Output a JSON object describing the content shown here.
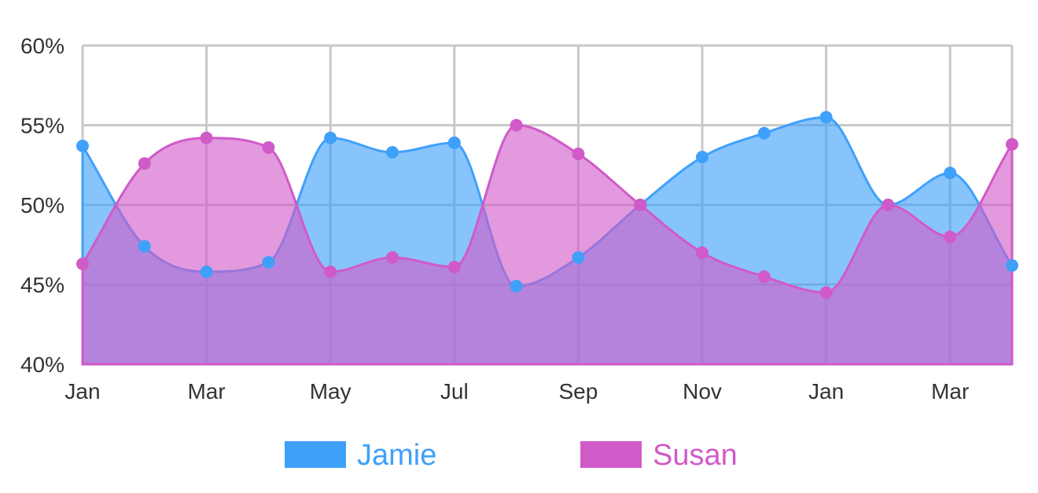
{
  "chart_data": {
    "type": "area",
    "title": "",
    "xlabel": "",
    "ylabel": "",
    "x_tick_labels": [
      "Jan",
      "Mar",
      "May",
      "Jul",
      "Sep",
      "Nov",
      "Jan",
      "Mar"
    ],
    "y_tick_labels": [
      "40%",
      "45%",
      "50%",
      "55%",
      "60%"
    ],
    "ylim": [
      40,
      60
    ],
    "grid": true,
    "legend_position": "bottom",
    "series": [
      {
        "name": "Jamie",
        "color": "#3fa0fa",
        "fill": "rgba(63,160,250,0.62)",
        "values": [
          53.7,
          47.4,
          45.8,
          46.4,
          54.2,
          53.3,
          53.9,
          44.9,
          46.7,
          50.0,
          53.0,
          54.5,
          55.5,
          50.0,
          52.0,
          46.2
        ]
      },
      {
        "name": "Susan",
        "color": "#d05ac8",
        "fill": "rgba(208,90,200,0.62)",
        "values": [
          46.3,
          52.6,
          54.2,
          53.6,
          45.8,
          46.7,
          46.1,
          55.0,
          53.2,
          50.0,
          47.0,
          45.5,
          44.5,
          50.0,
          48.0,
          53.8
        ]
      }
    ]
  }
}
